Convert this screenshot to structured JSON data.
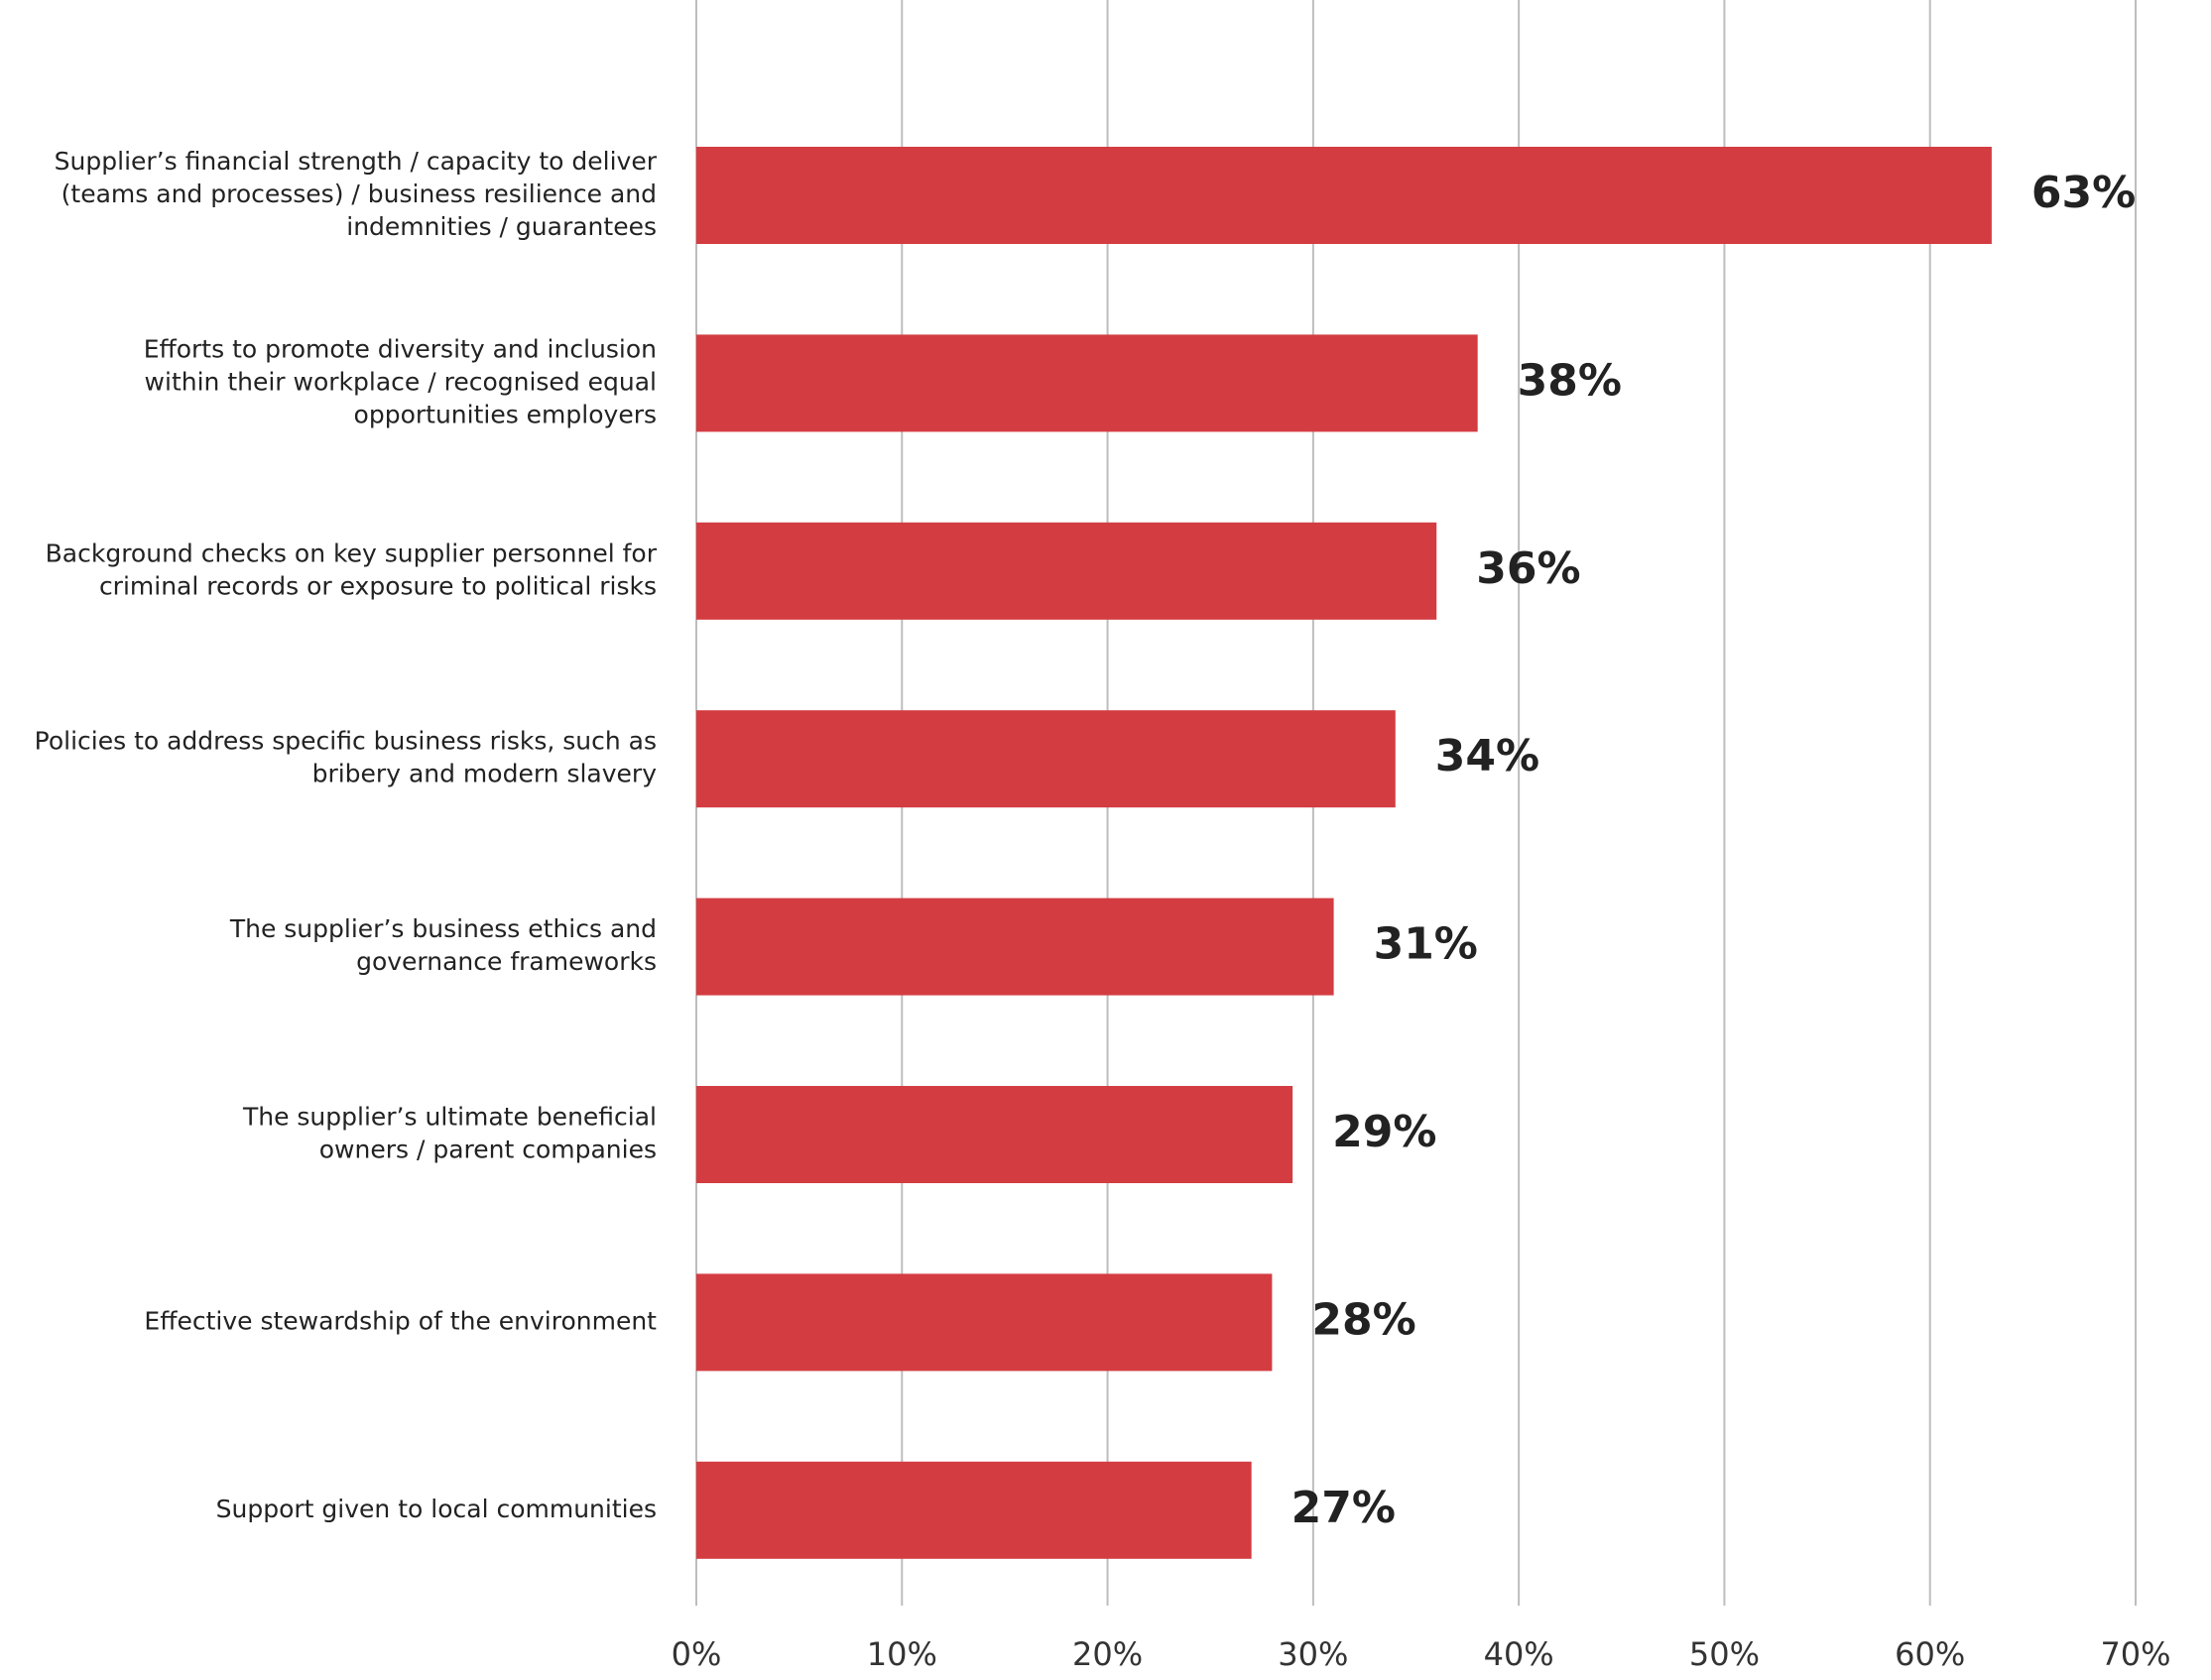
{
  "chart_data": {
    "type": "hbar",
    "categories": [
      [
        "Supplier’s financial strength / capacity to deliver",
        "(teams and processes) / business resilience and",
        "indemnities / guarantees"
      ],
      [
        "Efforts to promote diversity and inclusion",
        "within their workplace / recognised equal",
        "opportunities employers"
      ],
      [
        "Background checks on key supplier personnel for",
        "criminal records or exposure to political risks"
      ],
      [
        "Policies to address specific business risks, such as",
        "bribery and modern slavery"
      ],
      [
        "The supplier’s business ethics and",
        "governance frameworks"
      ],
      [
        "The supplier’s ultimate beneficial",
        "owners / parent companies"
      ],
      [
        "Effective stewardship of the environment"
      ],
      [
        "Support given to local communities"
      ]
    ],
    "values": [
      63,
      38,
      36,
      34,
      31,
      29,
      28,
      27
    ],
    "value_labels": [
      "63%",
      "38%",
      "36%",
      "34%",
      "31%",
      "29%",
      "28%",
      "27%"
    ],
    "color": "#d33c41",
    "xlim": [
      0,
      70
    ],
    "xticks": [
      {
        "value": 0,
        "label": "0%"
      },
      {
        "value": 10,
        "label": "10%"
      },
      {
        "value": 20,
        "label": "20%"
      },
      {
        "value": 30,
        "label": "30%"
      },
      {
        "value": 40,
        "label": "40%"
      },
      {
        "value": 50,
        "label": "50%"
      },
      {
        "value": 60,
        "label": "60%"
      },
      {
        "value": 70,
        "label": "70%"
      }
    ],
    "grid": true
  }
}
